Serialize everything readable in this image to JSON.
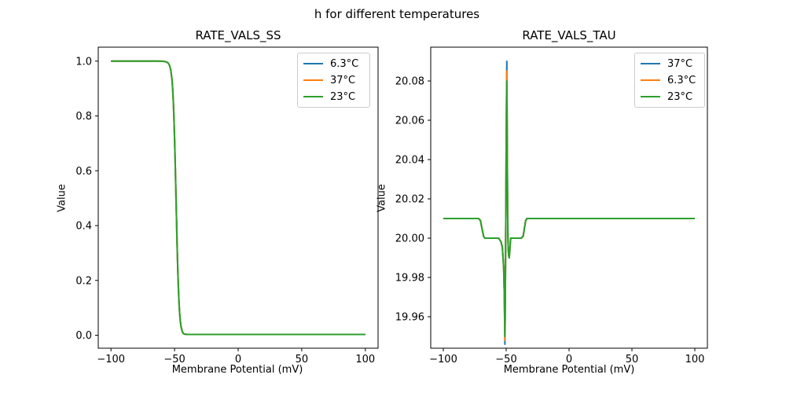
{
  "figure": {
    "title": "h for different temperatures",
    "background": "#ffffff"
  },
  "chart_data": [
    {
      "type": "line",
      "title": "RATE_VALS_SS",
      "xlabel": "Membrane Potential (mV)",
      "ylabel": "Value",
      "xlim": [
        -110,
        110
      ],
      "ylim": [
        -0.0473,
        1.0509
      ],
      "grid": false,
      "legend_position": "upper right",
      "xticks": [
        {
          "v": -100,
          "label": "−100"
        },
        {
          "v": -50,
          "label": "−50"
        },
        {
          "v": 0,
          "label": "0"
        },
        {
          "v": 50,
          "label": "50"
        },
        {
          "v": 100,
          "label": "100"
        }
      ],
      "yticks": [
        {
          "v": 0.0,
          "label": "0.0"
        },
        {
          "v": 0.2,
          "label": "0.2"
        },
        {
          "v": 0.4,
          "label": "0.4"
        },
        {
          "v": 0.6,
          "label": "0.6"
        },
        {
          "v": 0.8,
          "label": "0.8"
        },
        {
          "v": 1.0,
          "label": "1.0"
        }
      ],
      "series": [
        {
          "name": "6.3°C",
          "color": "#1f77b4",
          "points": [
            [
              -100,
              1.0
            ],
            [
              -65,
              1.0
            ],
            [
              -60,
              0.9995
            ],
            [
              -58,
              0.999
            ],
            [
              -56,
              0.996
            ],
            [
              -55,
              0.993
            ],
            [
              -54,
              0.985
            ],
            [
              -53,
              0.968
            ],
            [
              -52,
              0.932
            ],
            [
              -51.5,
              0.9
            ],
            [
              -51,
              0.855
            ],
            [
              -50.5,
              0.795
            ],
            [
              -50,
              0.72
            ],
            [
              -49.5,
              0.63
            ],
            [
              -49,
              0.53
            ],
            [
              -48.5,
              0.43
            ],
            [
              -48,
              0.33
            ],
            [
              -47.5,
              0.245
            ],
            [
              -47,
              0.175
            ],
            [
              -46.5,
              0.12
            ],
            [
              -46,
              0.08
            ],
            [
              -45.5,
              0.053
            ],
            [
              -45,
              0.034
            ],
            [
              -44,
              0.014
            ],
            [
              -43,
              0.006
            ],
            [
              -42,
              0.004
            ],
            [
              -40,
              0.003
            ],
            [
              -20,
              0.003
            ],
            [
              0,
              0.003
            ],
            [
              50,
              0.003
            ],
            [
              100,
              0.003
            ]
          ]
        },
        {
          "name": "37°C",
          "color": "#ff7f0e",
          "points": [
            [
              -100,
              1.0
            ],
            [
              -65,
              1.0
            ],
            [
              -60,
              0.9995
            ],
            [
              -58,
              0.999
            ],
            [
              -56,
              0.996
            ],
            [
              -55,
              0.993
            ],
            [
              -54,
              0.985
            ],
            [
              -53,
              0.968
            ],
            [
              -52,
              0.932
            ],
            [
              -51.5,
              0.9
            ],
            [
              -51,
              0.855
            ],
            [
              -50.5,
              0.795
            ],
            [
              -50,
              0.72
            ],
            [
              -49.5,
              0.63
            ],
            [
              -49,
              0.53
            ],
            [
              -48.5,
              0.43
            ],
            [
              -48,
              0.33
            ],
            [
              -47.5,
              0.245
            ],
            [
              -47,
              0.175
            ],
            [
              -46.5,
              0.12
            ],
            [
              -46,
              0.08
            ],
            [
              -45.5,
              0.053
            ],
            [
              -45,
              0.034
            ],
            [
              -44,
              0.014
            ],
            [
              -43,
              0.006
            ],
            [
              -42,
              0.004
            ],
            [
              -40,
              0.003
            ],
            [
              -20,
              0.003
            ],
            [
              0,
              0.003
            ],
            [
              50,
              0.003
            ],
            [
              100,
              0.003
            ]
          ]
        },
        {
          "name": "23°C",
          "color": "#2ca02c",
          "points": [
            [
              -100,
              1.0
            ],
            [
              -65,
              1.0
            ],
            [
              -60,
              0.9995
            ],
            [
              -58,
              0.999
            ],
            [
              -56,
              0.996
            ],
            [
              -55,
              0.993
            ],
            [
              -54,
              0.985
            ],
            [
              -53,
              0.968
            ],
            [
              -52,
              0.932
            ],
            [
              -51.5,
              0.9
            ],
            [
              -51,
              0.855
            ],
            [
              -50.5,
              0.795
            ],
            [
              -50,
              0.72
            ],
            [
              -49.5,
              0.63
            ],
            [
              -49,
              0.53
            ],
            [
              -48.5,
              0.43
            ],
            [
              -48,
              0.33
            ],
            [
              -47.5,
              0.245
            ],
            [
              -47,
              0.175
            ],
            [
              -46.5,
              0.12
            ],
            [
              -46,
              0.08
            ],
            [
              -45.5,
              0.053
            ],
            [
              -45,
              0.034
            ],
            [
              -44,
              0.014
            ],
            [
              -43,
              0.006
            ],
            [
              -42,
              0.004
            ],
            [
              -40,
              0.003
            ],
            [
              -20,
              0.003
            ],
            [
              0,
              0.003
            ],
            [
              50,
              0.003
            ],
            [
              100,
              0.003
            ]
          ]
        }
      ]
    },
    {
      "type": "line",
      "title": "RATE_VALS_TAU",
      "xlabel": "Membrane Potential (mV)",
      "ylabel": "Value",
      "xlim": [
        -110,
        110
      ],
      "ylim": [
        19.944,
        20.0972
      ],
      "grid": false,
      "legend_position": "upper right",
      "xticks": [
        {
          "v": -100,
          "label": "−100"
        },
        {
          "v": -50,
          "label": "−50"
        },
        {
          "v": 0,
          "label": "0"
        },
        {
          "v": 50,
          "label": "50"
        },
        {
          "v": 100,
          "label": "100"
        }
      ],
      "yticks": [
        {
          "v": 19.96,
          "label": "19.96"
        },
        {
          "v": 19.98,
          "label": "19.98"
        },
        {
          "v": 20.0,
          "label": "20.00"
        },
        {
          "v": 20.02,
          "label": "20.02"
        },
        {
          "v": 20.04,
          "label": "20.04"
        },
        {
          "v": 20.06,
          "label": "20.06"
        },
        {
          "v": 20.08,
          "label": "20.08"
        }
      ],
      "series": [
        {
          "name": "37°C",
          "color": "#1f77b4",
          "points": [
            [
              -100,
              20.01
            ],
            [
              -72,
              20.01
            ],
            [
              -70.5,
              20.009
            ],
            [
              -68,
              20.001
            ],
            [
              -67,
              20.0
            ],
            [
              -56,
              20.0
            ],
            [
              -54,
              19.998
            ],
            [
              -53,
              19.995
            ],
            [
              -52,
              19.985
            ],
            [
              -51.5,
              19.972
            ],
            [
              -51,
              19.946
            ],
            [
              -50.7,
              19.97
            ],
            [
              -50.3,
              20.01
            ],
            [
              -50,
              20.045
            ],
            [
              -49.7,
              20.075
            ],
            [
              -49.5,
              20.09
            ],
            [
              -49.3,
              20.065
            ],
            [
              -49,
              20.03
            ],
            [
              -48.7,
              20.005
            ],
            [
              -48.4,
              19.995
            ],
            [
              -48,
              19.991
            ],
            [
              -47.6,
              19.99
            ],
            [
              -47.2,
              19.993
            ],
            [
              -46.8,
              19.997
            ],
            [
              -46.4,
              20.0
            ],
            [
              -38,
              20.0
            ],
            [
              -36.5,
              20.001
            ],
            [
              -34.5,
              20.009
            ],
            [
              -33.5,
              20.01
            ],
            [
              0,
              20.01
            ],
            [
              50,
              20.01
            ],
            [
              100,
              20.01
            ]
          ]
        },
        {
          "name": "6.3°C",
          "color": "#ff7f0e",
          "points": [
            [
              -100,
              20.01
            ],
            [
              -72,
              20.01
            ],
            [
              -70.5,
              20.009
            ],
            [
              -68,
              20.001
            ],
            [
              -67,
              20.0
            ],
            [
              -56,
              20.0
            ],
            [
              -54,
              19.998
            ],
            [
              -53,
              19.995
            ],
            [
              -52,
              19.985
            ],
            [
              -51.5,
              19.972
            ],
            [
              -51,
              19.948
            ],
            [
              -50.7,
              19.97
            ],
            [
              -50.3,
              20.01
            ],
            [
              -50,
              20.043
            ],
            [
              -49.7,
              20.072
            ],
            [
              -49.5,
              20.085
            ],
            [
              -49.3,
              20.062
            ],
            [
              -49,
              20.028
            ],
            [
              -48.7,
              20.004
            ],
            [
              -48.4,
              19.995
            ],
            [
              -48,
              19.991
            ],
            [
              -47.6,
              19.99
            ],
            [
              -47.2,
              19.993
            ],
            [
              -46.8,
              19.997
            ],
            [
              -46.4,
              20.0
            ],
            [
              -38,
              20.0
            ],
            [
              -36.5,
              20.001
            ],
            [
              -34.5,
              20.009
            ],
            [
              -33.5,
              20.01
            ],
            [
              0,
              20.01
            ],
            [
              50,
              20.01
            ],
            [
              100,
              20.01
            ]
          ]
        },
        {
          "name": "23°C",
          "color": "#2ca02c",
          "points": [
            [
              -100,
              20.01
            ],
            [
              -72,
              20.01
            ],
            [
              -70.5,
              20.009
            ],
            [
              -68,
              20.001
            ],
            [
              -67,
              20.0
            ],
            [
              -56,
              20.0
            ],
            [
              -54,
              19.998
            ],
            [
              -53,
              19.995
            ],
            [
              -52,
              19.985
            ],
            [
              -51.5,
              19.972
            ],
            [
              -51,
              19.95
            ],
            [
              -50.7,
              19.97
            ],
            [
              -50.3,
              20.01
            ],
            [
              -50,
              20.042
            ],
            [
              -49.7,
              20.07
            ],
            [
              -49.5,
              20.08
            ],
            [
              -49.3,
              20.06
            ],
            [
              -49,
              20.026
            ],
            [
              -48.7,
              20.003
            ],
            [
              -48.4,
              19.995
            ],
            [
              -48,
              19.991
            ],
            [
              -47.6,
              19.99
            ],
            [
              -47.2,
              19.993
            ],
            [
              -46.8,
              19.997
            ],
            [
              -46.4,
              20.0
            ],
            [
              -38,
              20.0
            ],
            [
              -36.5,
              20.001
            ],
            [
              -34.5,
              20.009
            ],
            [
              -33.5,
              20.01
            ],
            [
              0,
              20.01
            ],
            [
              50,
              20.01
            ],
            [
              100,
              20.01
            ]
          ]
        }
      ]
    }
  ]
}
